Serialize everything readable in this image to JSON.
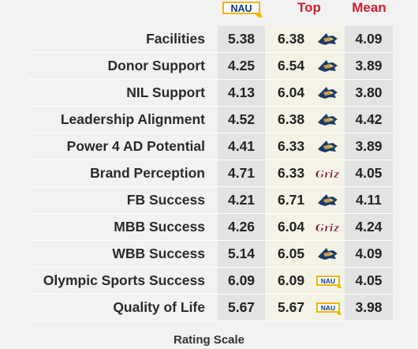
{
  "header": {
    "nau_logo_text": "NAU",
    "top_label": "Top",
    "mean_label": "Mean"
  },
  "colors": {
    "accent_red": "#d0202e",
    "nau_blue": "#0a3a8c",
    "nau_gold": "#f2b705",
    "griz_maroon": "#7a1530",
    "cat_blue": "#1a3a6b",
    "cat_gold": "#c8a04a"
  },
  "chart_data": {
    "type": "table",
    "columns": [
      "NAU",
      "Top",
      "Mean"
    ],
    "rows": [
      {
        "category": "Facilities",
        "nau": "5.38",
        "top": "6.38",
        "top_school": "bobcat-logo",
        "mean": "4.09"
      },
      {
        "category": "Donor Support",
        "nau": "4.25",
        "top": "6.54",
        "top_school": "bobcat-logo",
        "mean": "3.89"
      },
      {
        "category": "NIL Support",
        "nau": "4.13",
        "top": "6.04",
        "top_school": "bobcat-logo",
        "mean": "3.80"
      },
      {
        "category": "Leadership Alignment",
        "nau": "4.52",
        "top": "6.38",
        "top_school": "bobcat-logo",
        "mean": "4.42"
      },
      {
        "category": "Power 4 AD Potential",
        "nau": "4.41",
        "top": "6.33",
        "top_school": "bobcat-logo",
        "mean": "3.89"
      },
      {
        "category": "Brand Perception",
        "nau": "4.71",
        "top": "6.33",
        "top_school": "griz-logo",
        "mean": "4.05"
      },
      {
        "category": "FB Success",
        "nau": "4.21",
        "top": "6.71",
        "top_school": "bobcat-logo",
        "mean": "4.11"
      },
      {
        "category": "MBB Success",
        "nau": "4.26",
        "top": "6.04",
        "top_school": "griz-logo",
        "mean": "4.24"
      },
      {
        "category": "WBB Success",
        "nau": "5.14",
        "top": "6.05",
        "top_school": "bobcat-logo",
        "mean": "4.09"
      },
      {
        "category": "Olympic Sports Success",
        "nau": "6.09",
        "top": "6.09",
        "top_school": "nau-logo",
        "mean": "4.05"
      },
      {
        "category": "Quality of Life",
        "nau": "5.67",
        "top": "5.67",
        "top_school": "nau-logo",
        "mean": "3.98"
      }
    ]
  },
  "footer": {
    "rating_scale_label": "Rating Scale"
  }
}
